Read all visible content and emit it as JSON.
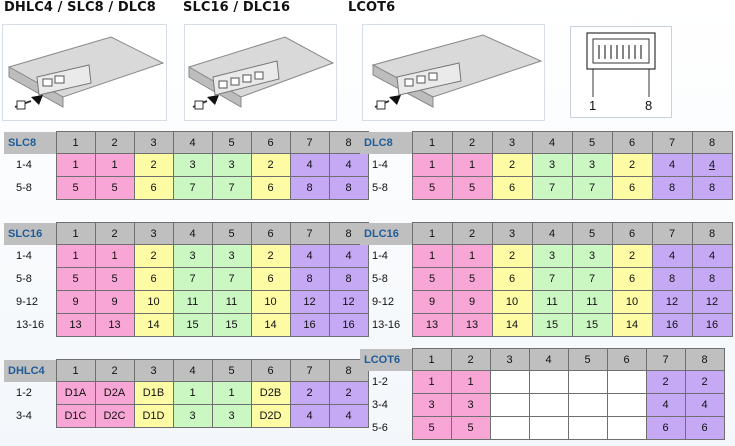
{
  "headers": {
    "h1": "DHLC4 / SLC8 / DLC8",
    "h2": "SLC16 / DLC16",
    "h3": "LCOT6"
  },
  "connector": {
    "pin_first": "1",
    "pin_last": "8"
  },
  "colors": {
    "pink": "#f8a6d6",
    "yellow": "#fdfca5",
    "green": "#cbf7c3",
    "purple": "#c6a9f5",
    "header_gray": "#bfbfbf",
    "label_blue": "#1f5c99"
  },
  "columns": [
    "1",
    "2",
    "3",
    "4",
    "5",
    "6",
    "7",
    "8"
  ],
  "tables": {
    "slc8": {
      "name": "SLC8",
      "rows": [
        {
          "label": "1-4",
          "cells": [
            "1",
            "1",
            "2",
            "3",
            "3",
            "2",
            "4",
            "4"
          ]
        },
        {
          "label": "5-8",
          "cells": [
            "5",
            "5",
            "6",
            "7",
            "7",
            "6",
            "8",
            "8"
          ]
        }
      ]
    },
    "dlc8": {
      "name": "DLC8",
      "rows": [
        {
          "label": "1-4",
          "cells": [
            "1",
            "1",
            "2",
            "3",
            "3",
            "2",
            "4",
            "4"
          ]
        },
        {
          "label": "5-8",
          "cells": [
            "5",
            "5",
            "6",
            "7",
            "7",
            "6",
            "8",
            "8"
          ]
        }
      ]
    },
    "slc16": {
      "name": "SLC16",
      "rows": [
        {
          "label": "1-4",
          "cells": [
            "1",
            "1",
            "2",
            "3",
            "3",
            "2",
            "4",
            "4"
          ]
        },
        {
          "label": "5-8",
          "cells": [
            "5",
            "5",
            "6",
            "7",
            "7",
            "6",
            "8",
            "8"
          ]
        },
        {
          "label": "9-12",
          "cells": [
            "9",
            "9",
            "10",
            "11",
            "11",
            "10",
            "12",
            "12"
          ]
        },
        {
          "label": "13-16",
          "cells": [
            "13",
            "13",
            "14",
            "15",
            "15",
            "14",
            "16",
            "16"
          ]
        }
      ]
    },
    "dlc16": {
      "name": "DLC16",
      "rows": [
        {
          "label": "1-4",
          "cells": [
            "1",
            "1",
            "2",
            "3",
            "3",
            "2",
            "4",
            "4"
          ]
        },
        {
          "label": "5-8",
          "cells": [
            "5",
            "5",
            "6",
            "7",
            "7",
            "6",
            "8",
            "8"
          ]
        },
        {
          "label": "9-12",
          "cells": [
            "9",
            "9",
            "10",
            "11",
            "11",
            "10",
            "12",
            "12"
          ]
        },
        {
          "label": "13-16",
          "cells": [
            "13",
            "13",
            "14",
            "15",
            "15",
            "14",
            "16",
            "16"
          ]
        }
      ]
    },
    "dhlc4": {
      "name": "DHLC4",
      "rows": [
        {
          "label": "1-2",
          "cells": [
            "D1A",
            "D2A",
            "D1B",
            "1",
            "1",
            "D2B",
            "2",
            "2"
          ]
        },
        {
          "label": "3-4",
          "cells": [
            "D1C",
            "D2C",
            "D1D",
            "3",
            "3",
            "D2D",
            "4",
            "4"
          ]
        }
      ]
    },
    "lcot6": {
      "name": "LCOT6",
      "rows": [
        {
          "label": "1-2",
          "cells": [
            "1",
            "1",
            "",
            "",
            "",
            "",
            "2",
            "2"
          ]
        },
        {
          "label": "3-4",
          "cells": [
            "3",
            "3",
            "",
            "",
            "",
            "",
            "4",
            "4"
          ]
        },
        {
          "label": "5-6",
          "cells": [
            "5",
            "5",
            "",
            "",
            "",
            "",
            "6",
            "6"
          ]
        }
      ]
    }
  }
}
